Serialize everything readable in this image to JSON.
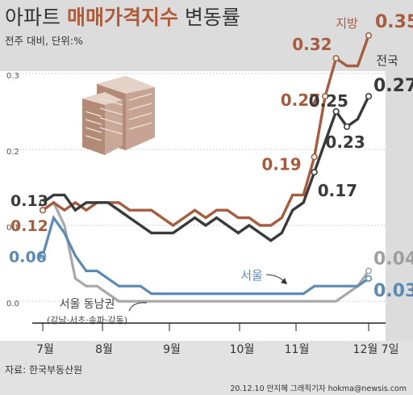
{
  "title": {
    "part1": "아파트 ",
    "part2": "매매가격지수",
    "part3": " 변동률"
  },
  "subtitle": "전주 대비, 단위:%",
  "source": "자료: 한국부동산원",
  "credit": "20.12.10 안지혜 그래픽기자 hokma@newsis.com",
  "chart_data": {
    "type": "line",
    "yticks": [
      "0.3",
      "0.2",
      "0.1",
      "0.0"
    ],
    "ylim": [
      0,
      0.35
    ],
    "x_labels": [
      "7월",
      "8월",
      "9월",
      "10월",
      "11월",
      "12월 7일"
    ],
    "series": [
      {
        "name": "지방",
        "color": "#a65c3e",
        "values": [
          0.12,
          0.13,
          0.12,
          0.13,
          0.12,
          0.13,
          0.13,
          0.13,
          0.12,
          0.12,
          0.12,
          0.11,
          0.1,
          0.11,
          0.12,
          0.11,
          0.12,
          0.12,
          0.11,
          0.11,
          0.1,
          0.1,
          0.11,
          0.14,
          0.14,
          0.19,
          0.27,
          0.32,
          0.31,
          0.31,
          0.35
        ]
      },
      {
        "name": "전국",
        "color": "#3a3a3a",
        "values": [
          0.13,
          0.14,
          0.14,
          0.12,
          0.13,
          0.13,
          0.13,
          0.12,
          0.11,
          0.1,
          0.09,
          0.09,
          0.09,
          0.1,
          0.11,
          0.1,
          0.11,
          0.1,
          0.09,
          0.1,
          0.09,
          0.08,
          0.09,
          0.12,
          0.13,
          0.17,
          0.21,
          0.25,
          0.23,
          0.24,
          0.27
        ]
      },
      {
        "name": "서울",
        "color": "#5b8ab5",
        "values": [
          0.06,
          0.11,
          0.09,
          0.06,
          0.04,
          0.04,
          0.03,
          0.02,
          0.02,
          0.02,
          0.01,
          0.01,
          0.01,
          0.01,
          0.01,
          0.01,
          0.01,
          0.01,
          0.01,
          0.01,
          0.01,
          0.01,
          0.01,
          0.01,
          0.01,
          0.02,
          0.02,
          0.02,
          0.02,
          0.02,
          0.03
        ]
      },
      {
        "name": "서울 동남권",
        "color": "#a8a8a8",
        "values": [
          0.12,
          0.13,
          0.1,
          0.03,
          0.02,
          0.02,
          0.01,
          0.0,
          0.0,
          0.0,
          0.0,
          0.0,
          0.0,
          0.0,
          0.0,
          0.0,
          0.0,
          0.0,
          0.0,
          0.0,
          0.0,
          0.0,
          0.0,
          0.0,
          0.0,
          0.0,
          0.0,
          0.0,
          0.01,
          0.02,
          0.04
        ]
      }
    ],
    "data_labels": [
      {
        "series": 1,
        "index": 0,
        "text": "0.13"
      },
      {
        "series": 0,
        "index": 0,
        "text": "0.12"
      },
      {
        "series": 2,
        "index": 0,
        "text": "0.06"
      },
      {
        "series": 0,
        "index": 25,
        "text": "0.19"
      },
      {
        "series": 0,
        "index": 26,
        "text": "0.27"
      },
      {
        "series": 0,
        "index": 27,
        "text": "0.32"
      },
      {
        "series": 0,
        "index": 30,
        "text": "0.35"
      },
      {
        "series": 1,
        "index": 25,
        "text": "0.17"
      },
      {
        "series": 1,
        "index": 27,
        "text": "0.25"
      },
      {
        "series": 1,
        "index": 28,
        "text": "0.23"
      },
      {
        "series": 1,
        "index": 30,
        "text": "0.27"
      },
      {
        "series": 3,
        "index": 30,
        "text": "0.04"
      },
      {
        "series": 2,
        "index": 30,
        "text": "0.03"
      }
    ],
    "series_labels": {
      "jibang": "지방",
      "jeonguk": "전국",
      "seoul": "서울",
      "dongnam": "서울 동남권",
      "dongnam_sub": "(강남·서초·송파·강동)"
    }
  }
}
